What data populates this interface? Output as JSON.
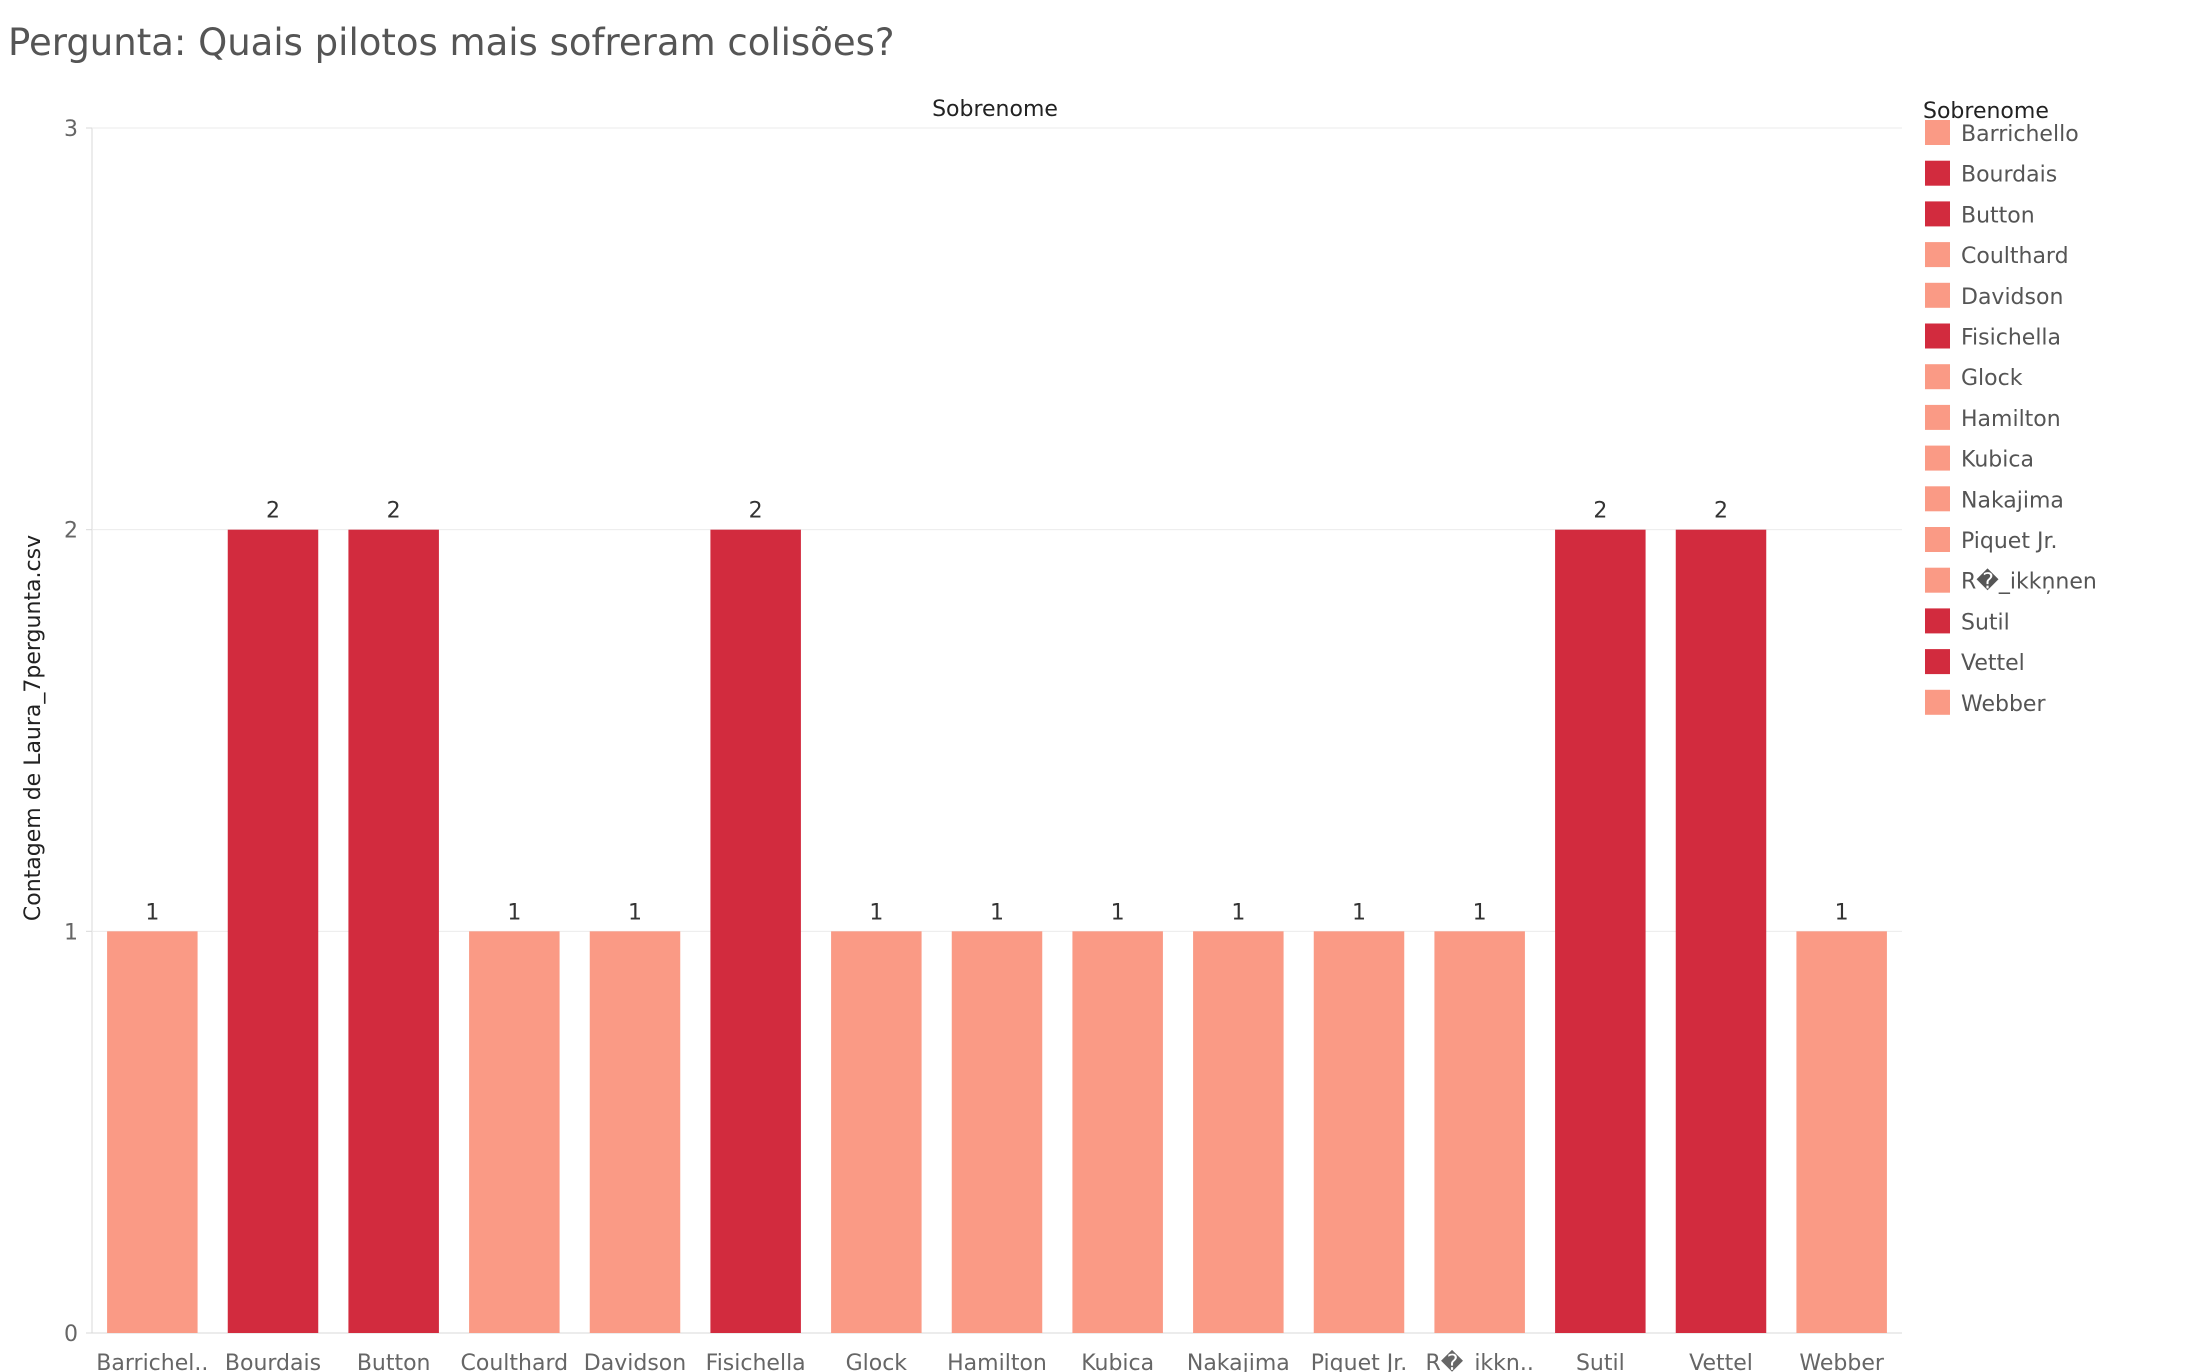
{
  "title": "Pergunta: Quais pilotos mais sofreram colisões?",
  "colors": {
    "high": "#d22b3e",
    "low": "#fa9a85",
    "grid": "#ebebeb",
    "axis": "#d9d9d9"
  },
  "legend": {
    "title": "Sobrenome",
    "items": [
      {
        "label": "Barrichello",
        "color": "#fa9a85"
      },
      {
        "label": "Bourdais",
        "color": "#d22b3e"
      },
      {
        "label": "Button",
        "color": "#d22b3e"
      },
      {
        "label": "Coulthard",
        "color": "#fa9a85"
      },
      {
        "label": "Davidson",
        "color": "#fa9a85"
      },
      {
        "label": "Fisichella",
        "color": "#d22b3e"
      },
      {
        "label": "Glock",
        "color": "#fa9a85"
      },
      {
        "label": "Hamilton",
        "color": "#fa9a85"
      },
      {
        "label": "Kubica",
        "color": "#fa9a85"
      },
      {
        "label": "Nakajima",
        "color": "#fa9a85"
      },
      {
        "label": "Piquet Jr.",
        "color": "#fa9a85"
      },
      {
        "label": "R�_ikkņnen",
        "color": "#fa9a85"
      },
      {
        "label": "Sutil",
        "color": "#d22b3e"
      },
      {
        "label": "Vettel",
        "color": "#d22b3e"
      },
      {
        "label": "Webber",
        "color": "#fa9a85"
      }
    ]
  },
  "chart_data": {
    "type": "bar",
    "title": "Pergunta: Quais pilotos mais sofreram colisões?",
    "column_header": "Sobrenome",
    "xlabel": "",
    "ylabel": "Contagem de Laura_7pergunta.csv",
    "categories": [
      "Barrichello",
      "Bourdais",
      "Button",
      "Coulthard",
      "Davidson",
      "Fisichella",
      "Glock",
      "Hamilton",
      "Kubica",
      "Nakajima",
      "Piquet Jr.",
      "R�_ikkņnen",
      "Sutil",
      "Vettel",
      "Webber"
    ],
    "tick_labels": [
      "Barrichel..",
      "Bourdais",
      "Button",
      "Coulthard",
      "Davidson",
      "Fisichella",
      "Glock",
      "Hamilton",
      "Kubica",
      "Nakajima",
      "Piquet Jr.",
      "R�_ikkņ..",
      "Sutil",
      "Vettel",
      "Webber"
    ],
    "values": [
      1,
      2,
      2,
      1,
      1,
      2,
      1,
      1,
      1,
      1,
      1,
      1,
      2,
      2,
      1
    ],
    "colors": [
      "#fa9a85",
      "#d22b3e",
      "#d22b3e",
      "#fa9a85",
      "#fa9a85",
      "#d22b3e",
      "#fa9a85",
      "#fa9a85",
      "#fa9a85",
      "#fa9a85",
      "#fa9a85",
      "#fa9a85",
      "#d22b3e",
      "#d22b3e",
      "#fa9a85"
    ],
    "yticks": [
      0,
      1,
      2,
      3
    ],
    "ylim": [
      0,
      3
    ],
    "grid": true,
    "legend_position": "right"
  }
}
